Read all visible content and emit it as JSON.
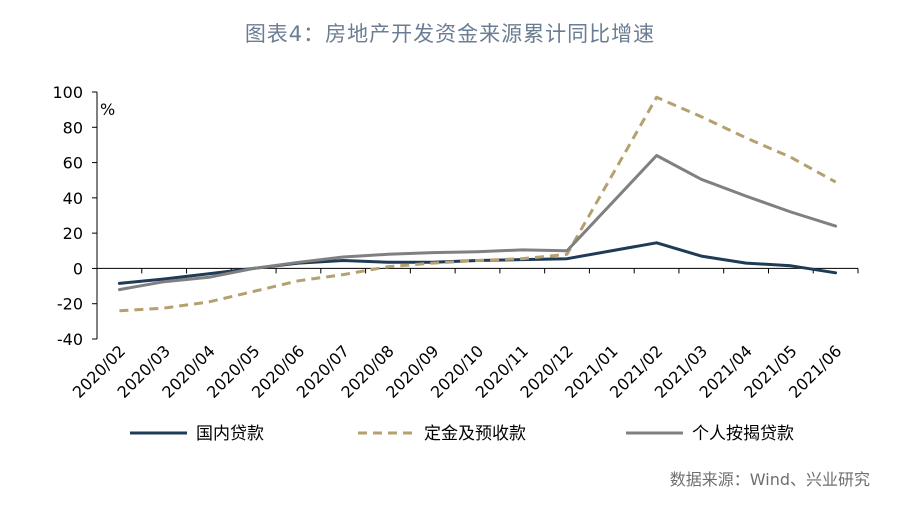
{
  "chart_data": {
    "type": "line",
    "title": "图表4：房地产开发资金来源累计同比增速",
    "ylabel": "%",
    "ylim": [
      -40,
      100
    ],
    "yticks": [
      -40,
      -20,
      0,
      20,
      40,
      60,
      80,
      100
    ],
    "categories": [
      "2020/02",
      "2020/03",
      "2020/04",
      "2020/05",
      "2020/06",
      "2020/07",
      "2020/08",
      "2020/09",
      "2020/10",
      "2020/11",
      "2020/12",
      "2021/01",
      "2021/02",
      "2021/03",
      "2021/04",
      "2021/05",
      "2021/06"
    ],
    "series": [
      {
        "name": "国内贷款",
        "color": "#1f3b57",
        "dash": "solid",
        "values": [
          -8.5,
          -6,
          -3,
          0,
          3,
          4.5,
          3.5,
          3.5,
          4.5,
          5,
          5.5,
          null,
          14.5,
          7,
          3,
          1.5,
          -2.5
        ]
      },
      {
        "name": "定金及预收款",
        "color": "#b5a06f",
        "dash": "dashed",
        "values": [
          -24,
          -22.5,
          -19,
          -13,
          -7,
          -3.5,
          1,
          3,
          4.5,
          5.5,
          8,
          null,
          97,
          86,
          74,
          63,
          49
        ]
      },
      {
        "name": "个人按揭贷款",
        "color": "#808080",
        "dash": "solid",
        "values": [
          -12,
          -7.5,
          -5,
          0,
          3.5,
          6.5,
          8,
          9,
          9.5,
          10.5,
          10,
          null,
          64,
          50.5,
          41,
          32,
          24
        ]
      }
    ],
    "grid": false,
    "legend": "bottom"
  },
  "source": "数据来源：Wind、兴业研究"
}
